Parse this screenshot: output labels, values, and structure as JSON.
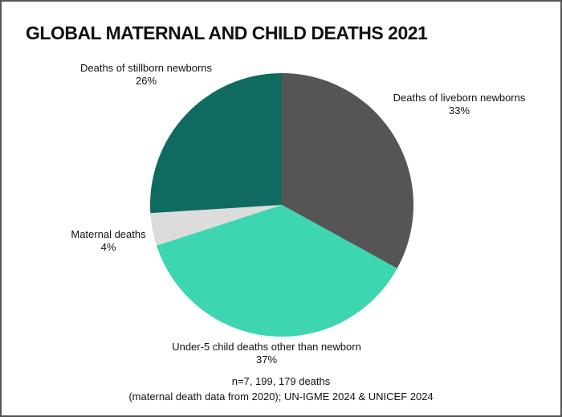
{
  "chart_data": {
    "type": "pie",
    "title": "GLOBAL MATERNAL AND CHILD DEATHS 2021",
    "start_angle": "12 o'clock, clockwise",
    "slices": [
      {
        "label": "Deaths of liveborn newborns",
        "value": 33,
        "value_label": "33%",
        "color": "#555555"
      },
      {
        "label": "Under-5 child deaths other than newborn",
        "value": 37,
        "value_label": "37%",
        "color": "#3dd6b0"
      },
      {
        "label": "Maternal deaths",
        "value": 4,
        "value_label": "4%",
        "color": "#dcdcdc"
      },
      {
        "label": "Deaths of stillborn newborns",
        "value": 26,
        "value_label": "26%",
        "color": "#0f6b60"
      }
    ],
    "notes": [
      "n=7, 199, 179 deaths",
      "(maternal death data from 2020); UN-IGME 2024 & UNICEF 2024"
    ]
  }
}
